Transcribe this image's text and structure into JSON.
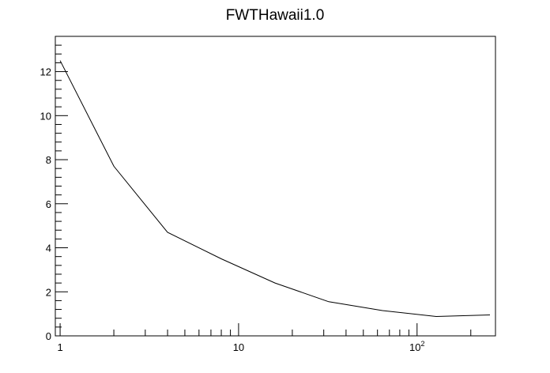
{
  "chart_data": {
    "type": "line",
    "title": "FWTHawaii1.0",
    "xlabel": "",
    "ylabel": "",
    "x_scale": "log",
    "xlim": [
      0.94,
      275
    ],
    "ylim": [
      0,
      13.6
    ],
    "grid": false,
    "x_tick_labels": [
      {
        "value": 1,
        "base": "1",
        "exp": ""
      },
      {
        "value": 10,
        "base": "10",
        "exp": ""
      },
      {
        "value": 100,
        "base": "10",
        "exp": "2"
      }
    ],
    "y_tick_labels": [
      {
        "value": 0,
        "label": "0"
      },
      {
        "value": 2,
        "label": "2"
      },
      {
        "value": 4,
        "label": "4"
      },
      {
        "value": 6,
        "label": "6"
      },
      {
        "value": 8,
        "label": "8"
      },
      {
        "value": 10,
        "label": "10"
      },
      {
        "value": 12,
        "label": "12"
      }
    ],
    "series": [
      {
        "color": "#000000",
        "x": [
          1,
          2,
          4,
          8,
          16,
          32,
          64,
          128,
          256
        ],
        "y": [
          12.5,
          7.7,
          4.7,
          3.5,
          2.4,
          1.55,
          1.15,
          0.88,
          0.95
        ]
      }
    ]
  }
}
